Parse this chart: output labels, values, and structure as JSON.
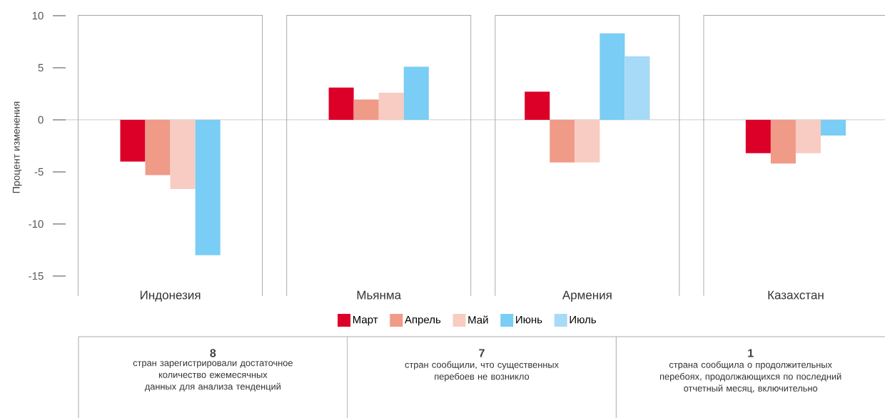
{
  "chart_data": {
    "type": "bar",
    "ylabel": "Процент изменения",
    "categories": [
      "Индонезия",
      "Мьянма",
      "Армения",
      "Казахстан"
    ],
    "series": [
      {
        "name": "Март",
        "color": "#dc0029",
        "values": [
          -4,
          3.1,
          2.7,
          -3.2
        ]
      },
      {
        "name": "Апрель",
        "color": "#f09a88",
        "values": [
          -5.3,
          1.95,
          -4.1,
          -4.2
        ]
      },
      {
        "name": "Май",
        "color": "#f8ccc2",
        "values": [
          -6.65,
          2.6,
          -4.1,
          -3.2
        ]
      },
      {
        "name": "Июнь",
        "color": "#7acdf4",
        "values": [
          -13,
          5.1,
          8.3,
          -1.5
        ]
      },
      {
        "name": "Июль",
        "color": "#a6daf6",
        "values": [
          null,
          null,
          6.1,
          null
        ]
      }
    ],
    "ylim": [
      -15,
      10
    ],
    "yticks": [
      -15,
      -10,
      -5,
      0,
      5,
      10
    ],
    "legend": "bottom",
    "annotations": [
      "8",
      "стран зарегистрировали достаточное количество ежемесячных данных для анализа тенденций",
      "7",
      "стран сообщили, что существенных перебоев не возникло",
      "1",
      "страна сообщила о продолжительных перебоях, продолжающихся по последний отчетный месяц, включительно"
    ]
  }
}
